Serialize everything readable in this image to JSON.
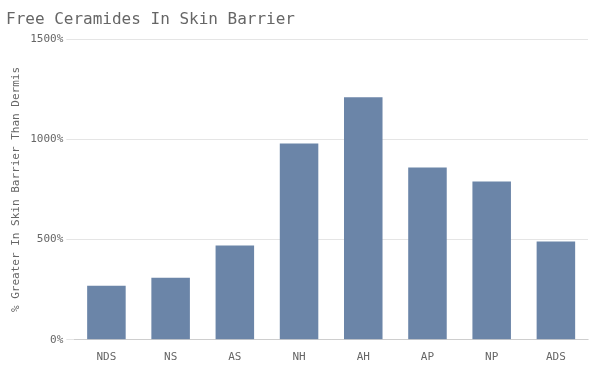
{
  "chart_data": {
    "type": "bar",
    "title": "Free Ceramides In Skin Barrier",
    "ylabel": "% Greater In Skin Barrier Than Dermis",
    "categories": [
      "NDS",
      "NS",
      "AS",
      "NH",
      "AH",
      "AP",
      "NP",
      "ADS"
    ],
    "values": [
      270,
      310,
      470,
      980,
      1210,
      860,
      790,
      490
    ],
    "color": "#6b85a8",
    "ylim": [
      0,
      1500
    ],
    "yticks": [
      {
        "value": 0,
        "label": "0%"
      },
      {
        "value": 500,
        "label": "500%"
      },
      {
        "value": 1000,
        "label": "1000%"
      },
      {
        "value": 1500,
        "label": "1500%"
      }
    ],
    "grid": true
  }
}
